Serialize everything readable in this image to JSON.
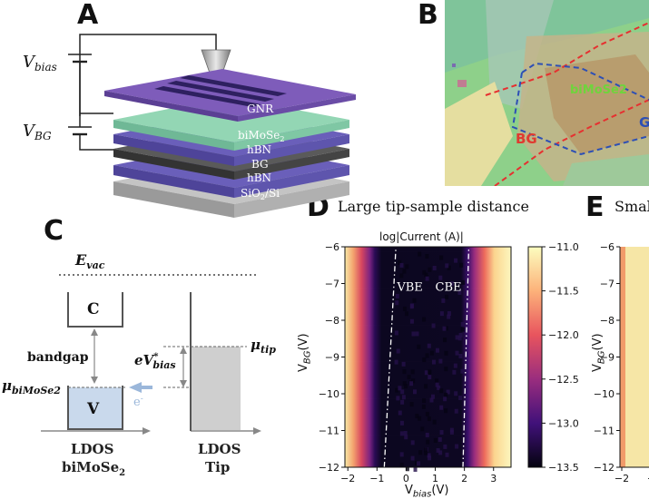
{
  "panels": {
    "a": "A",
    "b": "B",
    "c": "C",
    "d": "D",
    "e": "E"
  },
  "panel_a": {
    "vbias": {
      "main": "V",
      "sub": "bias"
    },
    "vbg": {
      "main": "V",
      "sub": "BG"
    },
    "layers": [
      "GNR",
      "biMoSe",
      "hBN",
      "BG",
      "hBN",
      "SiO"
    ],
    "bimose_sub": "2",
    "sio_sub": "2",
    "sio_suffix": "/Si",
    "colors": {
      "gnr": "#7c58b6",
      "bimose": "#8fd2b1",
      "hbn": "#5b52a8",
      "bg": "#4a4a4a",
      "substrate": "#b8b8b8"
    }
  },
  "panel_b": {
    "labels": {
      "bg": "BG",
      "bimose": "biMoSe2",
      "g": "G"
    },
    "colors": {
      "bg_line": "#e63030",
      "bimose_line": "#2d4fb5",
      "bg_text": "#e03a30",
      "bimose_text": "#6fd43c",
      "g_text": "#2d4fb5"
    }
  },
  "panel_c": {
    "evac": {
      "main": "E",
      "sub": "vac"
    },
    "c_label": "C",
    "v_label": "V",
    "bandgap": "bandgap",
    "mu_bimose": {
      "main": "μ",
      "sub": "biMoSe2"
    },
    "ebias": {
      "main": "eV",
      "sup": "*",
      "sub": "bias"
    },
    "mu_tip": {
      "main": "μ",
      "sub": "tip"
    },
    "electron": {
      "main": "e",
      "sup": "-"
    },
    "ldos1": [
      "LDOS",
      "biMoSe"
    ],
    "ldos1_sub": "2",
    "ldos2": [
      "LDOS",
      "Tip"
    ],
    "colors": {
      "v_fill": "#c9d9ec",
      "tip_fill": "#cfcfcf",
      "arrow": "#9bb7da"
    }
  },
  "panel_d": {
    "title": "Large tip-sample distance",
    "colorbar_title": "log|Current (A)|",
    "ylabel": {
      "main": "V",
      "sub": "BG",
      "suffix": "(V)"
    },
    "xlabel": {
      "main": "V",
      "sub": "bias",
      "suffix": "(V)"
    },
    "annotations": [
      "VBE",
      "CBE"
    ]
  },
  "panel_e": {
    "title": "Smal",
    "ylabel": {
      "main": "V",
      "sub": "BG",
      "suffix": "(V)"
    }
  },
  "chart_data": {
    "type": "heatmap",
    "title": "Large tip-sample distance",
    "xlabel": "Vbias(V)",
    "ylabel": "VBG(V)",
    "xlim": [
      -2.1,
      3.6
    ],
    "ylim": [
      -12,
      -6
    ],
    "x_ticks": [
      -2,
      -1,
      0,
      1,
      2,
      3
    ],
    "y_ticks": [
      -6,
      -7,
      -8,
      -9,
      -10,
      -11,
      -12
    ],
    "colorbar": {
      "label": "log|Current (A)|",
      "range": [
        -13.5,
        -11.0
      ],
      "ticks": [
        -11.0,
        -11.5,
        -12.0,
        -12.5,
        -13.0,
        -13.5
      ],
      "colormap": "magma"
    },
    "edges": [
      {
        "name": "VBE",
        "x_at_ymin": -0.75,
        "x_at_ymax": -0.35
      },
      {
        "name": "CBE",
        "x_at_ymin": 1.95,
        "x_at_ymax": 2.15
      }
    ]
  },
  "panel_e_chart": {
    "type": "heatmap",
    "y_ticks": [
      -6,
      -7,
      -8,
      -9,
      -10,
      -11,
      -12
    ],
    "x_ticks": [
      -2,
      -1
    ]
  }
}
